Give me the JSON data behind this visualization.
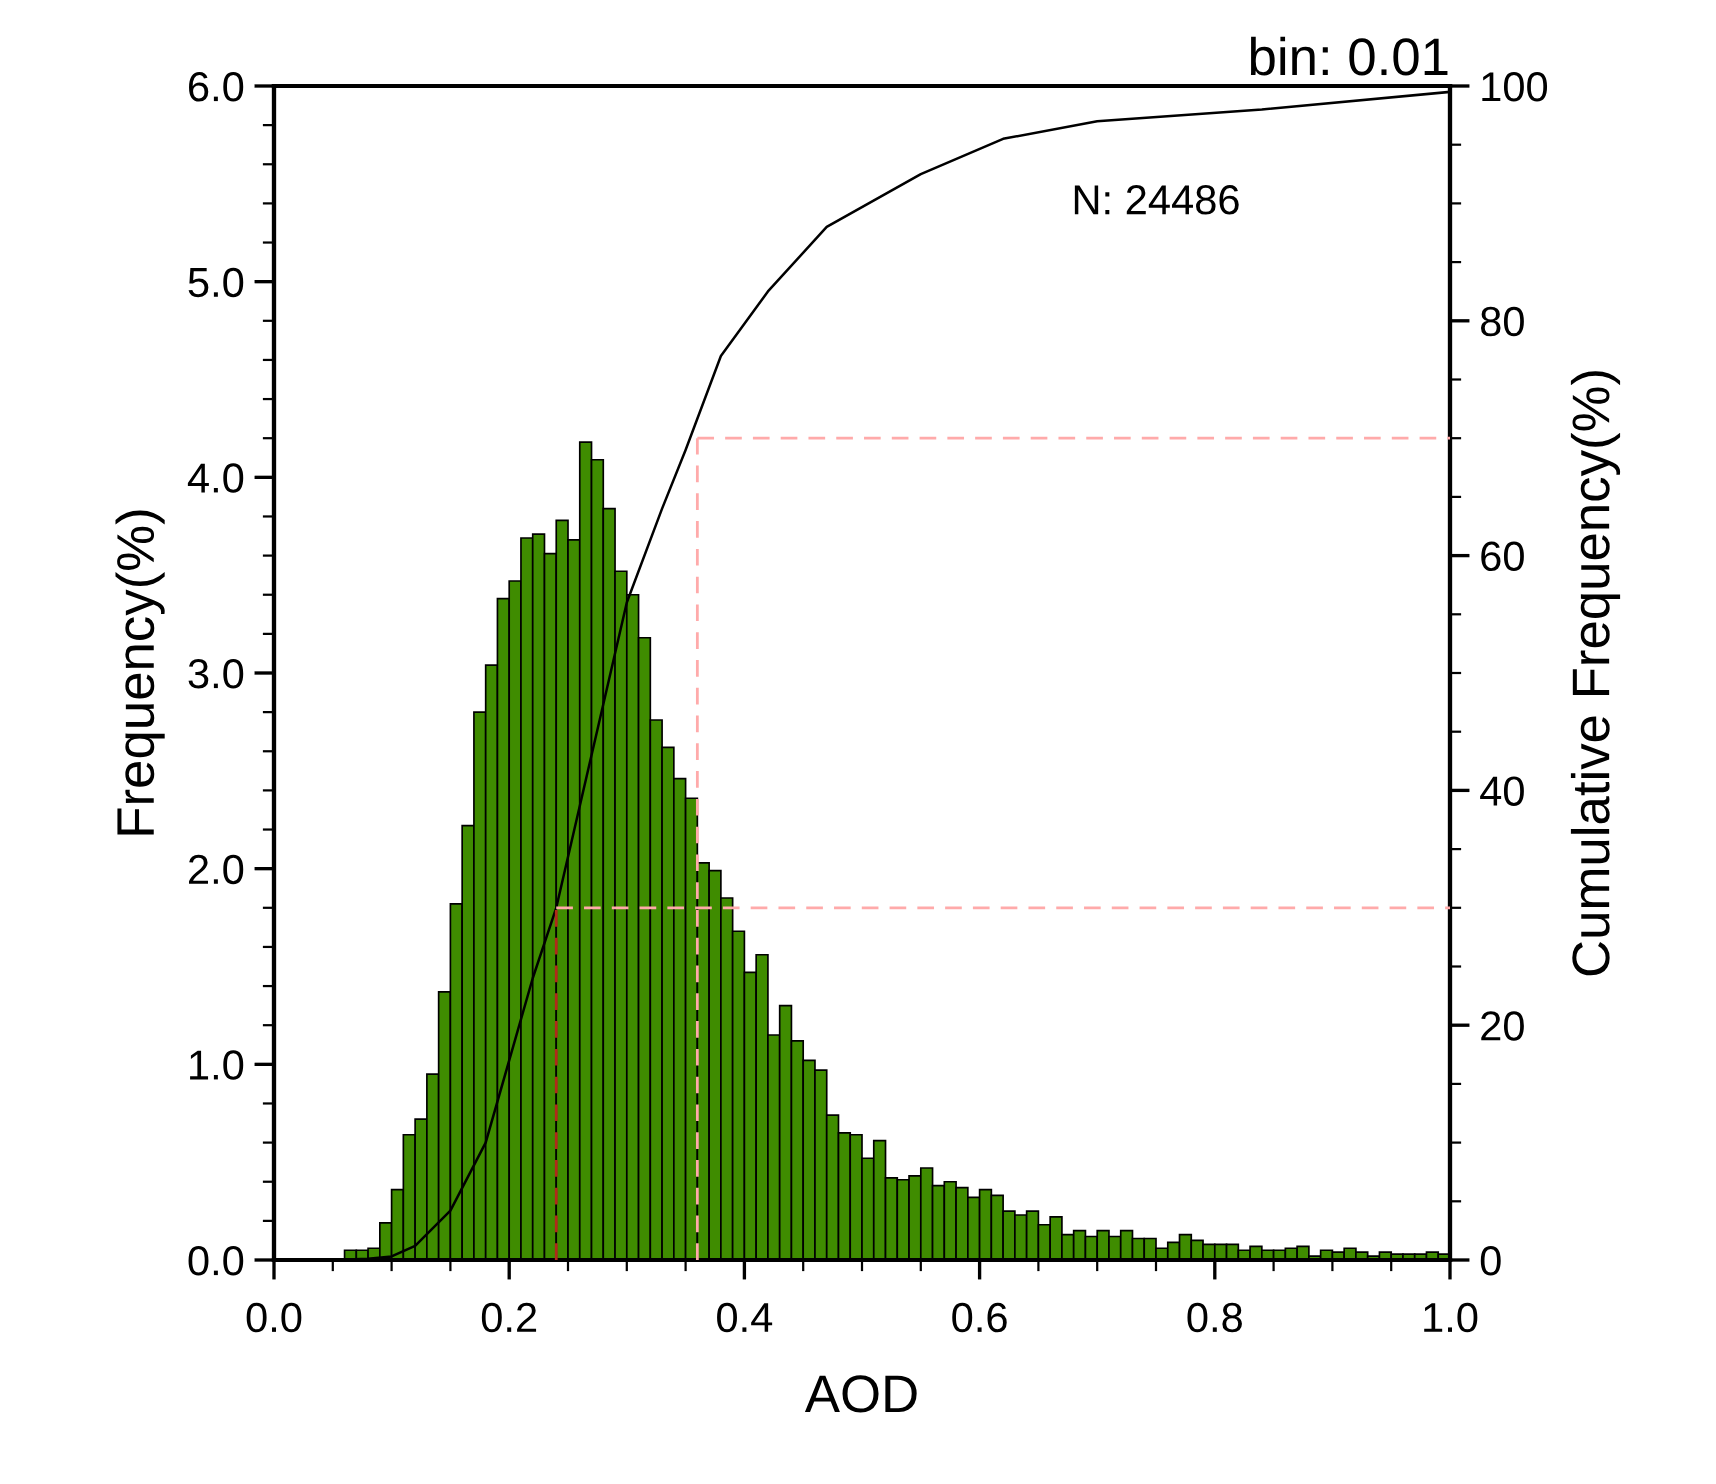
{
  "chart_data": {
    "type": "histogram",
    "title": "bin: 0.01",
    "xlabel": "AOD",
    "ylabel": "Frequency(%)",
    "y2label": "Cumulative Frequency(%)",
    "annotations": [
      "N: 24486"
    ],
    "bins": [
      0.06,
      0.07,
      0.08,
      0.09,
      0.1,
      0.11,
      0.12,
      0.13,
      0.14,
      0.15,
      0.16,
      0.17,
      0.18,
      0.19,
      0.2,
      0.21,
      0.22,
      0.23,
      0.24,
      0.25,
      0.26,
      0.27,
      0.28,
      0.29,
      0.3,
      0.31,
      0.32,
      0.33,
      0.34,
      0.35,
      0.36,
      0.37,
      0.38,
      0.39,
      0.4,
      0.41,
      0.42,
      0.43,
      0.44,
      0.45,
      0.46,
      0.47,
      0.48,
      0.49,
      0.5,
      0.51,
      0.52,
      0.53,
      0.54,
      0.55,
      0.56,
      0.57,
      0.58,
      0.59,
      0.6,
      0.61,
      0.62,
      0.63,
      0.64,
      0.65,
      0.66,
      0.67,
      0.68,
      0.69,
      0.7,
      0.71,
      0.72,
      0.73,
      0.74,
      0.75,
      0.76,
      0.77,
      0.78,
      0.79,
      0.8,
      0.81,
      0.82,
      0.83,
      0.84,
      0.85,
      0.86,
      0.87,
      0.88,
      0.89,
      0.9,
      0.91,
      0.92,
      0.93,
      0.94,
      0.95,
      0.96,
      0.97,
      0.98,
      0.99,
      1.0
    ],
    "values": [
      0.05,
      0.05,
      0.06,
      0.19,
      0.36,
      0.64,
      0.72,
      0.95,
      1.37,
      1.82,
      2.22,
      2.8,
      3.04,
      3.38,
      3.47,
      3.69,
      3.71,
      3.61,
      3.78,
      3.68,
      4.18,
      4.09,
      3.84,
      3.52,
      3.4,
      3.18,
      2.76,
      2.62,
      2.46,
      2.36,
      2.03,
      1.99,
      1.85,
      1.68,
      1.47,
      1.56,
      1.15,
      1.3,
      1.12,
      1.02,
      0.97,
      0.74,
      0.65,
      0.64,
      0.52,
      0.61,
      0.42,
      0.41,
      0.43,
      0.47,
      0.38,
      0.4,
      0.37,
      0.32,
      0.36,
      0.33,
      0.25,
      0.23,
      0.25,
      0.18,
      0.22,
      0.13,
      0.15,
      0.12,
      0.15,
      0.12,
      0.15,
      0.11,
      0.11,
      0.06,
      0.09,
      0.13,
      0.1,
      0.08,
      0.08,
      0.08,
      0.05,
      0.07,
      0.05,
      0.05,
      0.06,
      0.07,
      0.02,
      0.05,
      0.04,
      0.06,
      0.04,
      0.02,
      0.04,
      0.03,
      0.03,
      0.03,
      0.04,
      0.03
    ],
    "color": "#3f8c00",
    "series": [
      {
        "type": "line",
        "axis": "y2",
        "color": "#000000",
        "x": [
          0.05,
          0.08,
          0.1,
          0.12,
          0.15,
          0.18,
          0.2,
          0.22,
          0.24,
          0.27,
          0.3,
          0.33,
          0.35,
          0.38,
          0.42,
          0.47,
          0.55,
          0.62,
          0.7,
          0.84,
          1.0
        ],
        "values": [
          0,
          0.1,
          0.3,
          1.2,
          4.2,
          10,
          17,
          24,
          30,
          43,
          56,
          64,
          69,
          77,
          82.5,
          88,
          92.5,
          95.5,
          97,
          98,
          99.5
        ]
      }
    ],
    "ref_lines": [
      {
        "axis": "x",
        "value": 0.24,
        "color": "#b02a1a",
        "line_style": "dashed"
      },
      {
        "axis": "y2",
        "value": 30,
        "color": "#ffaaaa",
        "line_style": "dashed"
      },
      {
        "axis": "x",
        "value": 0.36,
        "color": "#ffaaaa",
        "line_style": "dashed"
      },
      {
        "axis": "y2",
        "value": 70,
        "color": "#ffaaaa",
        "line_style": "dashed"
      }
    ],
    "xlim": [
      0.0,
      1.0
    ],
    "xticks": [
      {
        "value": 0.0,
        "label": "0.0"
      },
      {
        "value": 0.2,
        "label": "0.2"
      },
      {
        "value": 0.4,
        "label": "0.4"
      },
      {
        "value": 0.6,
        "label": "0.6"
      },
      {
        "value": 0.8,
        "label": "0.8"
      },
      {
        "value": 1.0,
        "label": "1.0"
      }
    ],
    "ylim": [
      0.0,
      6.0
    ],
    "yticks": [
      {
        "value": 0.0,
        "label": "0.0"
      },
      {
        "value": 1.0,
        "label": "1.0"
      },
      {
        "value": 2.0,
        "label": "2.0"
      },
      {
        "value": 3.0,
        "label": "3.0"
      },
      {
        "value": 4.0,
        "label": "4.0"
      },
      {
        "value": 5.0,
        "label": "5.0"
      },
      {
        "value": 6.0,
        "label": "6.0"
      }
    ],
    "y2lim": [
      0,
      100
    ],
    "y2ticks": [
      0,
      20,
      40,
      60,
      80,
      100
    ],
    "grid": false,
    "legend": false
  }
}
